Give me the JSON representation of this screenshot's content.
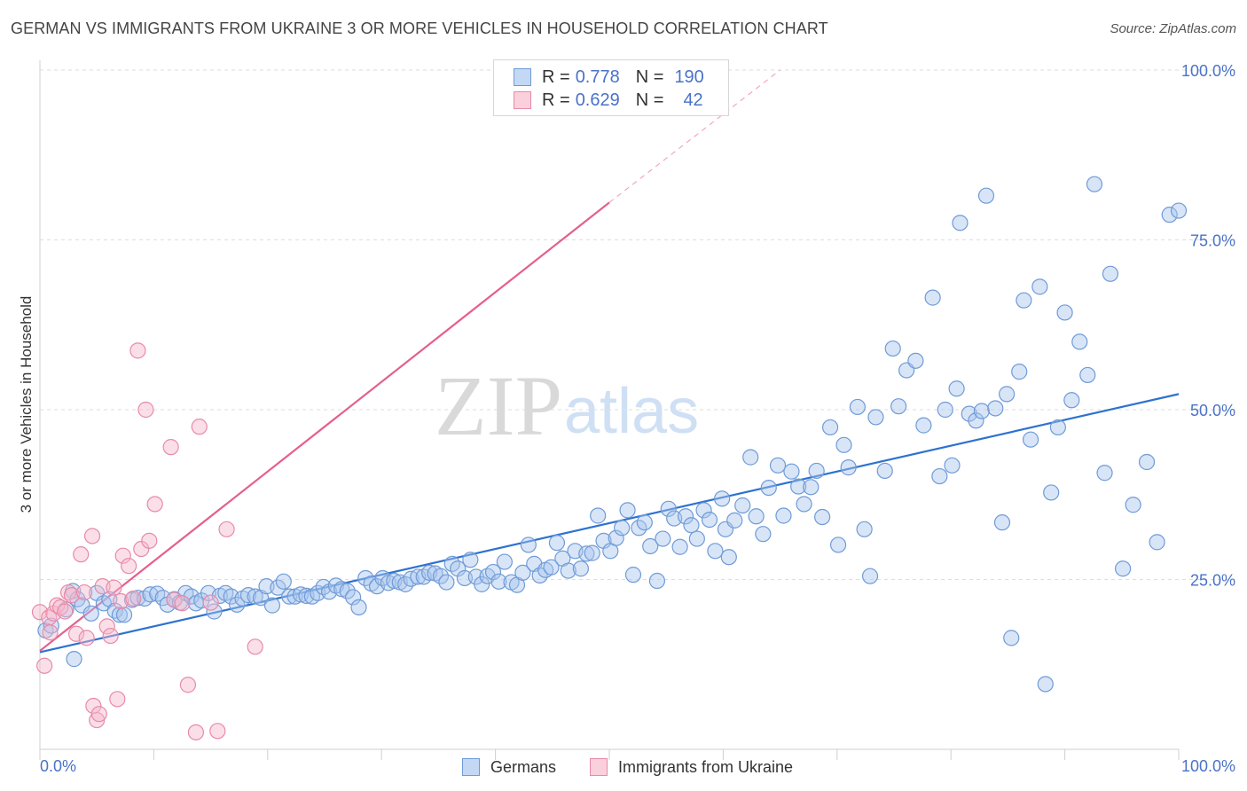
{
  "title": "GERMAN VS IMMIGRANTS FROM UKRAINE 3 OR MORE VEHICLES IN HOUSEHOLD CORRELATION CHART",
  "source": "Source: ZipAtlas.com",
  "watermark": {
    "zip": "ZIP",
    "atlas": "atlas"
  },
  "legend": {
    "rows": [
      {
        "r_label": "R =",
        "r_value": "0.778",
        "n_label": "N =",
        "n_value": "190",
        "color": "#a9c6ee"
      },
      {
        "r_label": "R =",
        "r_value": "0.629",
        "n_label": "N =",
        "n_value": "42",
        "color": "#f6b8cb"
      }
    ]
  },
  "bottom_legend": {
    "germans": "Germans",
    "ukraine": "Immigrants from Ukraine"
  },
  "chart_data": {
    "type": "scatter",
    "title": "GERMAN VS IMMIGRANTS FROM UKRAINE 3 OR MORE VEHICLES IN HOUSEHOLD CORRELATION CHART",
    "xlabel": "",
    "ylabel": "3 or more Vehicles in Household",
    "xlim": [
      0,
      100
    ],
    "ylim": [
      0,
      100
    ],
    "x_tick_labels": [
      "0.0%",
      "100.0%"
    ],
    "y_tick_labels": [
      "25.0%",
      "50.0%",
      "75.0%",
      "100.0%"
    ],
    "y_ticks": [
      25,
      50,
      75,
      100
    ],
    "grid": true,
    "legend_position": "top-center",
    "colors": {
      "germans_fill": "#a9c6ee",
      "germans_stroke": "#6f9bd8",
      "germans_line": "#2d72d0",
      "ukraine_fill": "#f6b8cb",
      "ukraine_stroke": "#e88aa8",
      "ukraine_line": "#e55f8d",
      "axis_label": "#4a72c8"
    },
    "series": [
      {
        "name": "Germans",
        "trend": {
          "x": [
            0,
            100
          ],
          "y": [
            14.3,
            52.3
          ]
        },
        "points": [
          [
            0.5,
            17.5
          ],
          [
            1.0,
            18.2
          ],
          [
            2.3,
            20.6
          ],
          [
            2.9,
            23.3
          ],
          [
            3.0,
            13.3
          ],
          [
            3.3,
            22.1
          ],
          [
            3.7,
            21.2
          ],
          [
            4.5,
            20.0
          ],
          [
            5.0,
            23.0
          ],
          [
            5.6,
            21.5
          ],
          [
            6.1,
            22.1
          ],
          [
            6.6,
            20.4
          ],
          [
            7.0,
            19.8
          ],
          [
            7.4,
            19.8
          ],
          [
            8.1,
            22.0
          ],
          [
            8.6,
            22.3
          ],
          [
            9.2,
            22.2
          ],
          [
            9.7,
            22.8
          ],
          [
            10.3,
            22.9
          ],
          [
            10.8,
            22.3
          ],
          [
            11.2,
            21.3
          ],
          [
            11.8,
            22.1
          ],
          [
            12.3,
            21.6
          ],
          [
            12.8,
            23.0
          ],
          [
            13.3,
            22.5
          ],
          [
            13.7,
            21.5
          ],
          [
            14.2,
            21.9
          ],
          [
            14.8,
            23.0
          ],
          [
            15.3,
            20.3
          ],
          [
            15.8,
            22.6
          ],
          [
            16.3,
            23.0
          ],
          [
            16.8,
            22.5
          ],
          [
            17.3,
            21.3
          ],
          [
            17.8,
            22.2
          ],
          [
            18.3,
            22.7
          ],
          [
            18.9,
            22.5
          ],
          [
            19.4,
            22.3
          ],
          [
            19.9,
            24.0
          ],
          [
            20.4,
            21.2
          ],
          [
            20.9,
            23.8
          ],
          [
            21.4,
            24.7
          ],
          [
            21.9,
            22.5
          ],
          [
            22.4,
            22.5
          ],
          [
            22.9,
            22.8
          ],
          [
            23.4,
            22.6
          ],
          [
            23.9,
            22.5
          ],
          [
            24.4,
            23.0
          ],
          [
            24.9,
            23.9
          ],
          [
            25.4,
            23.2
          ],
          [
            26.0,
            24.1
          ],
          [
            26.5,
            23.6
          ],
          [
            27.0,
            23.3
          ],
          [
            27.5,
            22.4
          ],
          [
            28.0,
            20.9
          ],
          [
            28.6,
            25.2
          ],
          [
            29.1,
            24.4
          ],
          [
            29.6,
            24.0
          ],
          [
            30.1,
            25.2
          ],
          [
            30.6,
            24.5
          ],
          [
            31.1,
            24.8
          ],
          [
            31.6,
            24.6
          ],
          [
            32.1,
            24.3
          ],
          [
            32.6,
            25.1
          ],
          [
            33.2,
            25.4
          ],
          [
            33.7,
            25.4
          ],
          [
            34.2,
            26.0
          ],
          [
            34.7,
            25.9
          ],
          [
            35.2,
            25.5
          ],
          [
            35.7,
            24.6
          ],
          [
            36.2,
            27.3
          ],
          [
            36.7,
            26.6
          ],
          [
            37.3,
            25.2
          ],
          [
            37.8,
            27.9
          ],
          [
            38.3,
            25.4
          ],
          [
            38.8,
            24.3
          ],
          [
            39.3,
            25.5
          ],
          [
            39.8,
            26.1
          ],
          [
            40.3,
            24.7
          ],
          [
            40.8,
            27.6
          ],
          [
            41.4,
            24.6
          ],
          [
            41.9,
            24.2
          ],
          [
            42.4,
            26.0
          ],
          [
            42.9,
            30.1
          ],
          [
            43.4,
            27.3
          ],
          [
            43.9,
            25.6
          ],
          [
            44.4,
            26.4
          ],
          [
            44.9,
            26.8
          ],
          [
            45.4,
            30.4
          ],
          [
            45.9,
            28.1
          ],
          [
            46.4,
            26.3
          ],
          [
            47.0,
            29.2
          ],
          [
            47.5,
            26.6
          ],
          [
            48.0,
            28.8
          ],
          [
            48.5,
            28.9
          ],
          [
            49.0,
            34.4
          ],
          [
            49.5,
            30.7
          ],
          [
            50.1,
            29.2
          ],
          [
            50.6,
            31.1
          ],
          [
            51.1,
            32.6
          ],
          [
            51.6,
            35.2
          ],
          [
            52.1,
            25.7
          ],
          [
            52.6,
            32.6
          ],
          [
            53.1,
            33.4
          ],
          [
            53.6,
            29.9
          ],
          [
            54.2,
            24.8
          ],
          [
            54.7,
            31.0
          ],
          [
            55.2,
            35.4
          ],
          [
            55.7,
            34.0
          ],
          [
            56.2,
            29.8
          ],
          [
            56.7,
            34.3
          ],
          [
            57.2,
            33.0
          ],
          [
            57.7,
            31.0
          ],
          [
            58.3,
            35.2
          ],
          [
            58.8,
            33.8
          ],
          [
            59.3,
            29.2
          ],
          [
            59.9,
            36.9
          ],
          [
            60.2,
            32.4
          ],
          [
            60.5,
            28.3
          ],
          [
            61.0,
            33.7
          ],
          [
            61.7,
            35.9
          ],
          [
            62.4,
            43.0
          ],
          [
            62.9,
            34.3
          ],
          [
            63.5,
            31.7
          ],
          [
            64.0,
            38.5
          ],
          [
            64.8,
            41.8
          ],
          [
            65.3,
            34.4
          ],
          [
            66.0,
            40.9
          ],
          [
            66.6,
            38.7
          ],
          [
            67.1,
            36.1
          ],
          [
            67.7,
            38.6
          ],
          [
            68.2,
            41.0
          ],
          [
            68.7,
            34.2
          ],
          [
            69.4,
            47.4
          ],
          [
            70.1,
            30.1
          ],
          [
            70.6,
            44.8
          ],
          [
            71.0,
            41.5
          ],
          [
            71.8,
            50.4
          ],
          [
            72.4,
            32.4
          ],
          [
            72.9,
            25.5
          ],
          [
            73.4,
            48.9
          ],
          [
            74.2,
            41.0
          ],
          [
            74.9,
            59.0
          ],
          [
            75.4,
            50.5
          ],
          [
            76.1,
            55.8
          ],
          [
            76.9,
            57.2
          ],
          [
            77.6,
            47.7
          ],
          [
            78.4,
            66.5
          ],
          [
            79.0,
            40.2
          ],
          [
            79.5,
            50.0
          ],
          [
            80.1,
            41.8
          ],
          [
            80.5,
            53.1
          ],
          [
            80.8,
            77.5
          ],
          [
            81.6,
            49.4
          ],
          [
            82.2,
            48.4
          ],
          [
            82.7,
            49.8
          ],
          [
            83.1,
            81.5
          ],
          [
            83.9,
            50.2
          ],
          [
            84.5,
            33.4
          ],
          [
            84.9,
            52.3
          ],
          [
            85.3,
            16.4
          ],
          [
            86.0,
            55.6
          ],
          [
            86.4,
            66.1
          ],
          [
            87.0,
            45.6
          ],
          [
            87.8,
            68.1
          ],
          [
            88.3,
            9.6
          ],
          [
            88.8,
            37.8
          ],
          [
            89.4,
            47.4
          ],
          [
            90.0,
            64.3
          ],
          [
            90.6,
            51.4
          ],
          [
            91.3,
            60.0
          ],
          [
            92.0,
            55.1
          ],
          [
            92.6,
            83.2
          ],
          [
            93.5,
            40.7
          ],
          [
            94.0,
            70.0
          ],
          [
            95.1,
            26.6
          ],
          [
            96.0,
            36.0
          ],
          [
            97.2,
            42.3
          ],
          [
            98.1,
            30.5
          ],
          [
            99.2,
            78.7
          ],
          [
            100.0,
            79.3
          ]
        ]
      },
      {
        "name": "Immigrants from Ukraine",
        "trend": {
          "x": [
            0,
            50
          ],
          "y": [
            14.5,
            80.5
          ]
        },
        "trend_extension": {
          "x": [
            50,
            65
          ],
          "y": [
            80.5,
            100
          ]
        },
        "points": [
          [
            0.0,
            20.2
          ],
          [
            0.4,
            12.3
          ],
          [
            0.8,
            19.4
          ],
          [
            1.2,
            20.0
          ],
          [
            1.5,
            21.2
          ],
          [
            1.8,
            20.9
          ],
          [
            2.2,
            20.3
          ],
          [
            2.5,
            23.1
          ],
          [
            2.8,
            22.7
          ],
          [
            3.2,
            17.0
          ],
          [
            3.6,
            28.7
          ],
          [
            3.9,
            23.1
          ],
          [
            4.1,
            16.4
          ],
          [
            4.6,
            31.4
          ],
          [
            4.7,
            6.4
          ],
          [
            5.0,
            4.3
          ],
          [
            5.2,
            5.2
          ],
          [
            5.5,
            24.0
          ],
          [
            5.9,
            18.1
          ],
          [
            6.2,
            16.7
          ],
          [
            6.5,
            23.8
          ],
          [
            6.8,
            7.4
          ],
          [
            7.1,
            21.8
          ],
          [
            7.3,
            28.5
          ],
          [
            7.8,
            27.0
          ],
          [
            8.2,
            22.2
          ],
          [
            8.6,
            58.7
          ],
          [
            8.9,
            29.5
          ],
          [
            9.3,
            50.0
          ],
          [
            9.6,
            30.7
          ],
          [
            10.1,
            36.1
          ],
          [
            11.5,
            44.5
          ],
          [
            11.8,
            22.0
          ],
          [
            12.5,
            21.5
          ],
          [
            13.0,
            9.5
          ],
          [
            13.7,
            2.5
          ],
          [
            14.0,
            47.5
          ],
          [
            15.0,
            21.6
          ],
          [
            15.6,
            2.7
          ],
          [
            16.4,
            32.4
          ],
          [
            18.9,
            15.1
          ],
          [
            0.9,
            17.2
          ]
        ]
      }
    ]
  }
}
